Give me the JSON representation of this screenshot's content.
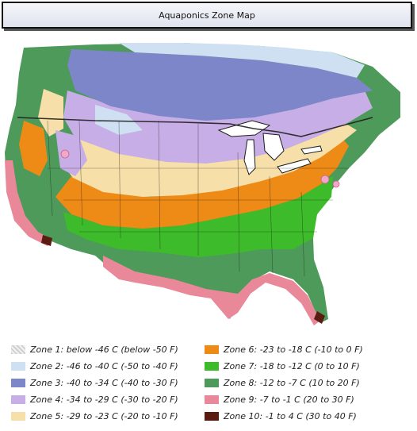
{
  "title": "Aquaponics Zone Map",
  "colors": {
    "zone1": "#d9d9d9",
    "zone2": "#cfe0f2",
    "zone3": "#7d86c8",
    "zone4": "#c7aee6",
    "zone5": "#f6dfa8",
    "zone6": "#ee8a16",
    "zone7": "#3dbb2a",
    "zone8": "#4d9a5a",
    "zone9": "#e98898",
    "zone10": "#5a1c10",
    "water": "#ffffff",
    "border": "#1e1e1e",
    "city": "#f4a6c8"
  },
  "legend": {
    "left": [
      {
        "zone": "zone1",
        "label": "Zone 1: below -46 C (below -50 F)"
      },
      {
        "zone": "zone2",
        "label": "Zone 2: -46 to -40 C (-50 to -40 F)"
      },
      {
        "zone": "zone3",
        "label": "Zone 3: -40 to -34 C (-40 to -30 F)"
      },
      {
        "zone": "zone4",
        "label": "Zone 4: -34 to -29 C (-30 to -20 F)"
      },
      {
        "zone": "zone5",
        "label": "Zone 5: -29 to -23 C (-20 to -10 F)"
      }
    ],
    "right": [
      {
        "zone": "zone6",
        "label": "Zone 6: -23 to -18 C (-10 to 0 F)"
      },
      {
        "zone": "zone7",
        "label": "Zone 7: -18 to -12 C (0 to 10 F)"
      },
      {
        "zone": "zone8",
        "label": "Zone 8: -12 to -7 C (10 to 20 F)"
      },
      {
        "zone": "zone9",
        "label": "Zone 9: -7 to -1 C (20 to 30 F)"
      },
      {
        "zone": "zone10",
        "label": "Zone 10: -1 to 4 C (30 to 40 F)"
      }
    ]
  }
}
